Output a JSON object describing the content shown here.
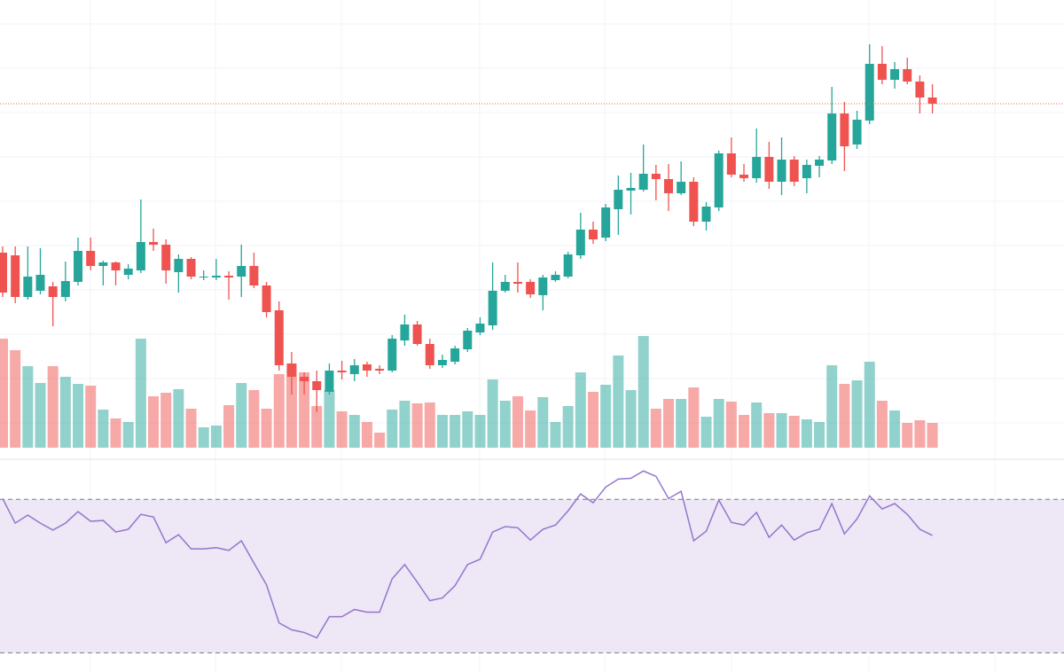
{
  "chart_data": [
    {
      "type": "candlestick",
      "categories": [
        null,
        null,
        null,
        null,
        null,
        null,
        null,
        null,
        null,
        null,
        null,
        null,
        null,
        null,
        null,
        null,
        null,
        null,
        null,
        null,
        null,
        null,
        null,
        null,
        null,
        null,
        null,
        null,
        null,
        null,
        null,
        null,
        null,
        null,
        null,
        null,
        null,
        null,
        null,
        null,
        null,
        null,
        null,
        null,
        null,
        null,
        null,
        null,
        null,
        null,
        null,
        null,
        null,
        null,
        null,
        null,
        null,
        null,
        null,
        null,
        null,
        null,
        null,
        null,
        null,
        null,
        null,
        null,
        null,
        null,
        null,
        null,
        null,
        null,
        null
      ],
      "open": [
        235,
        232,
        185,
        192,
        197,
        185,
        202,
        237,
        220,
        224,
        210,
        215,
        247,
        244,
        213,
        228,
        207,
        207,
        209,
        208,
        220,
        198,
        170,
        110,
        95,
        90,
        78,
        102,
        98,
        109,
        104,
        102,
        136,
        154,
        132,
        108,
        112,
        126,
        145,
        153,
        192,
        202,
        202,
        187,
        204,
        208,
        232,
        261,
        252,
        284,
        305,
        306,
        324,
        318,
        302,
        315,
        270,
        286,
        347,
        323,
        319,
        343,
        315,
        340,
        319,
        333,
        339,
        392,
        357,
        384,
        448,
        430,
        442,
        428,
        410
      ],
      "high": [
        242,
        242,
        242,
        240,
        202,
        225,
        252,
        252,
        226,
        225,
        222,
        295,
        262,
        250,
        233,
        230,
        215,
        228,
        214,
        244,
        235,
        202,
        180,
        123,
        100,
        102,
        110,
        113,
        115,
        112,
        108,
        142,
        165,
        158,
        138,
        120,
        130,
        150,
        162,
        224,
        210,
        224,
        205,
        210,
        214,
        236,
        280,
        270,
        290,
        322,
        325,
        357,
        334,
        335,
        338,
        320,
        292,
        350,
        365,
        335,
        375,
        360,
        365,
        344,
        340,
        344,
        422,
        405,
        395,
        470,
        468,
        450,
        455,
        435,
        425
      ],
      "low": [
        185,
        178,
        182,
        188,
        152,
        180,
        198,
        215,
        198,
        198,
        205,
        212,
        237,
        200,
        190,
        205,
        204,
        204,
        182,
        185,
        195,
        162,
        102,
        75,
        75,
        55,
        75,
        92,
        90,
        95,
        98,
        100,
        130,
        130,
        104,
        105,
        109,
        123,
        142,
        148,
        190,
        190,
        184,
        170,
        202,
        206,
        228,
        245,
        248,
        255,
        278,
        304,
        294,
        282,
        300,
        265,
        260,
        282,
        320,
        315,
        314,
        307,
        300,
        310,
        302,
        320,
        335,
        327,
        352,
        380,
        425,
        420,
        425,
        392,
        392
      ],
      "close": [
        190,
        185,
        208,
        210,
        185,
        203,
        237,
        220,
        224,
        215,
        217,
        247,
        244,
        215,
        228,
        208,
        208,
        209,
        207,
        220,
        198,
        168,
        108,
        95,
        90,
        80,
        102,
        100,
        108,
        102,
        102,
        138,
        154,
        132,
        108,
        114,
        127,
        147,
        155,
        192,
        202,
        200,
        188,
        207,
        210,
        233,
        261,
        250,
        286,
        306,
        308,
        324,
        318,
        302,
        315,
        270,
        287,
        347,
        323,
        319,
        343,
        315,
        340,
        315,
        334,
        340,
        392,
        355,
        385,
        448,
        430,
        442,
        428,
        410,
        403
      ],
      "up_color": "#26a69a",
      "down_color": "#ef5350",
      "ylim": [
        0,
        520
      ],
      "price_line": 403,
      "price_line_color": "#f0643c"
    },
    {
      "type": "bar",
      "categories": [
        null,
        null,
        null,
        null,
        null,
        null,
        null,
        null,
        null,
        null,
        null,
        null,
        null,
        null,
        null,
        null,
        null,
        null,
        null,
        null,
        null,
        null,
        null,
        null,
        null,
        null,
        null,
        null,
        null,
        null,
        null,
        null,
        null,
        null,
        null,
        null,
        null,
        null,
        null,
        null,
        null,
        null,
        null,
        null,
        null,
        null,
        null,
        null,
        null,
        null,
        null,
        null,
        null,
        null,
        null,
        null,
        null,
        null,
        null,
        null,
        null,
        null,
        null,
        null,
        null,
        null,
        null,
        null,
        null,
        null,
        null,
        null,
        null,
        null,
        null
      ],
      "values": [
        123,
        110,
        92,
        73,
        92,
        80,
        72,
        70,
        43,
        33,
        29,
        123,
        58,
        62,
        66,
        44,
        23,
        25,
        48,
        73,
        65,
        44,
        83,
        95,
        85,
        47,
        65,
        41,
        37,
        29,
        17,
        43,
        53,
        50,
        51,
        37,
        37,
        41,
        37,
        77,
        53,
        58,
        42,
        57,
        29,
        47,
        85,
        63,
        71,
        104,
        65,
        126,
        44,
        55,
        55,
        68,
        35,
        55,
        52,
        37,
        51,
        39,
        39,
        36,
        32,
        29,
        93,
        72,
        76,
        97,
        53,
        42,
        28,
        31,
        28
      ],
      "up_color": "#26a69a",
      "down_color": "#ef5350",
      "ylim": [
        0,
        135
      ]
    },
    {
      "type": "line",
      "categories": [
        null,
        null,
        null,
        null,
        null,
        null,
        null,
        null,
        null,
        null,
        null,
        null,
        null,
        null,
        null,
        null,
        null,
        null,
        null,
        null,
        null,
        null,
        null,
        null,
        null,
        null,
        null,
        null,
        null,
        null,
        null,
        null,
        null,
        null,
        null,
        null,
        null,
        null,
        null,
        null,
        null,
        null,
        null,
        null,
        null,
        null,
        null,
        null,
        null,
        null,
        null,
        null,
        null,
        null,
        null,
        null,
        null,
        null,
        null,
        null,
        null,
        null,
        null,
        null,
        null,
        null,
        null,
        null,
        null,
        null,
        null,
        null,
        null,
        null,
        null
      ],
      "values": [
        70.2,
        63.8,
        65.9,
        63.8,
        62.0,
        63.8,
        66.8,
        64.3,
        64.5,
        61.5,
        62.2,
        66.1,
        65.4,
        58.7,
        60.8,
        57.1,
        57.1,
        57.4,
        56.7,
        59.2,
        53.4,
        47.7,
        37.8,
        36.0,
        35.3,
        33.9,
        39.4,
        39.4,
        41.3,
        40.6,
        40.6,
        49.3,
        53.0,
        48.4,
        43.6,
        44.3,
        47.5,
        53.0,
        54.4,
        61.5,
        62.9,
        62.6,
        59.4,
        62.2,
        63.3,
        67.0,
        71.4,
        69.1,
        73.2,
        75.3,
        75.5,
        77.4,
        76.0,
        70.2,
        72.1,
        59.2,
        61.7,
        69.8,
        64.0,
        63.3,
        66.6,
        60.1,
        63.3,
        59.4,
        61.3,
        62.2,
        68.9,
        61.0,
        64.9,
        70.9,
        67.5,
        68.9,
        66.1,
        62.2,
        60.6
      ],
      "color": "#9575cd",
      "ylim": [
        25,
        80
      ],
      "bands": [
        30,
        70
      ],
      "band_color": "#ede7f6",
      "band_line_color": "#787b86"
    }
  ]
}
